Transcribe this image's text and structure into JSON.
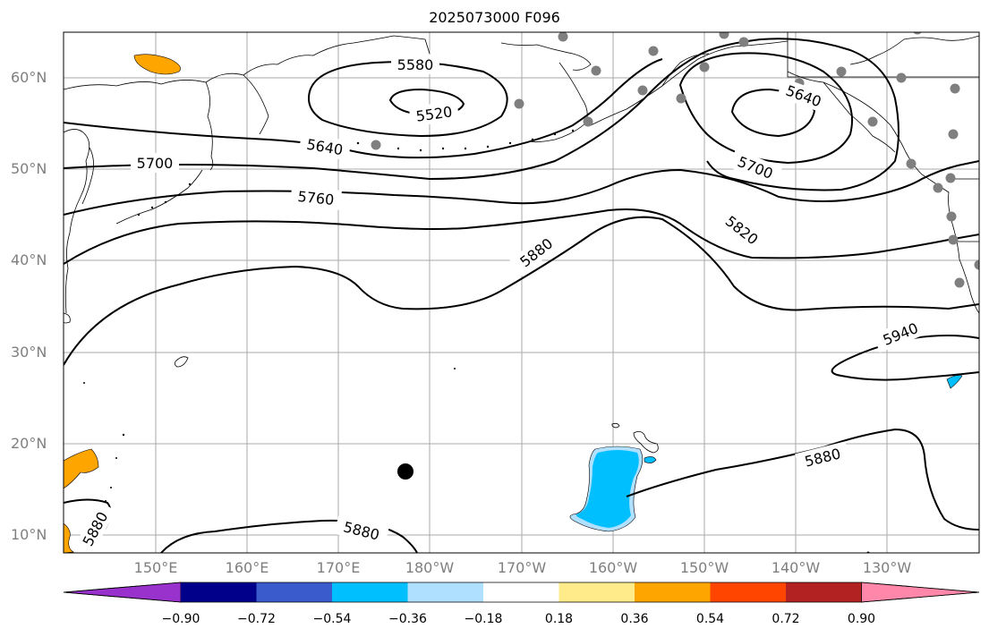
{
  "title": "2025073000 F096",
  "lat_labels": [
    "60°N",
    "50°N",
    "40°N",
    "30°N",
    "20°N",
    "10°N"
  ],
  "lon_labels": [
    "150°E",
    "160°E",
    "170°E",
    "180°W",
    "170°W",
    "160°W",
    "150°W",
    "140°W",
    "130°W"
  ],
  "contour_labels": [
    "5520",
    "5580",
    "5640",
    "5640",
    "5700",
    "5700",
    "5760",
    "5820",
    "5880",
    "5880",
    "5880",
    "5880",
    "5940"
  ],
  "colorbar": {
    "tick_labels": [
      "−0.90",
      "−0.72",
      "−0.54",
      "−0.36",
      "−0.18",
      "0.18",
      "0.36",
      "0.54",
      "0.72",
      "0.90"
    ],
    "colors": [
      "#9932CC",
      "#00008B",
      "#3A5BCC",
      "#00BFFF",
      "#B0E0FF",
      "#FFFFFF",
      "#FFEB8A",
      "#FFA500",
      "#FF4500",
      "#B22222",
      "#FF88AA"
    ]
  }
}
